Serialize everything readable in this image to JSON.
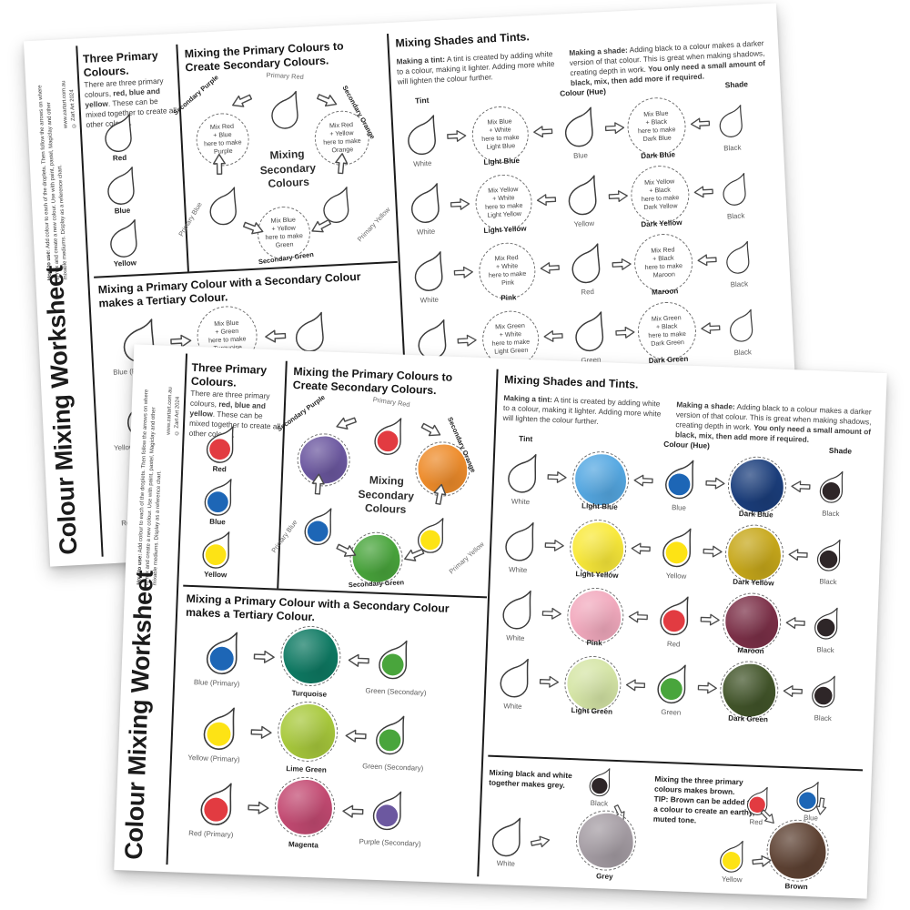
{
  "ws": {
    "title": "Colour Mixing Worksheet",
    "sidebar": {
      "how_to_label": "How to use:",
      "how_to_text": " Add colour to each of the droplets. Then follow the arrows on where to mix and create a new colour. Use with paint, pastel, Magiclay and other mixable mediums. Display as a reference chart.",
      "website": "www.zartart.com.au",
      "copyright": "© Zart Art 2024"
    },
    "palette": {
      "red": "#e23b41",
      "blue": "#1d66b6",
      "yellow": "#fde315",
      "purple": "#6c58a0",
      "orange": "#ee8c2b",
      "green": "#49a53c",
      "light_blue": "#55a8e2",
      "dark_blue": "#1b3e7c",
      "light_yellow": "#f9e93a",
      "dark_yellow": "#c7a81b",
      "pink": "#f2aabe",
      "maroon": "#7c3048",
      "light_green": "#d5e5a6",
      "dark_green": "#42552a",
      "turquoise": "#0e7a63",
      "lime_green": "#a8c93c",
      "magenta": "#c34a72",
      "grey": "#a59da4",
      "brown": "#5e4233",
      "black": "#2e2628",
      "white": "#ffffff"
    },
    "primary": {
      "heading": "Three Primary Colours.",
      "body_start": "There are three primary colours, ",
      "body_bold": "red, blue and yellow",
      "body_end": ". These can be mixed together to create all other colours.",
      "droplets": [
        {
          "label": "Red",
          "key": "red"
        },
        {
          "label": "Blue",
          "key": "blue"
        },
        {
          "label": "Yellow",
          "key": "yellow"
        }
      ]
    },
    "secondary": {
      "heading": "Mixing the Primary Colours to Create Secondary Colours.",
      "center": "Mixing\nSecondary\nColours",
      "primary_red": "Primary Red",
      "primary_blue": "Primary Blue",
      "primary_yellow": "Primary Yellow",
      "purple": {
        "label": "Secondary Purple",
        "key": "purple",
        "mix": "Mix Red\n+ Blue\nhere to make\nPurple"
      },
      "orange": {
        "label": "Secondary Orange",
        "key": "orange",
        "mix": "Mix Red\n+ Yellow\nhere to make\nOrange"
      },
      "green": {
        "label": "Secondary Green",
        "key": "green",
        "mix": "Mix Blue\n+ Yellow\nhere to make\nGreen"
      }
    },
    "shades": {
      "heading": "Mixing Shades and Tints.",
      "tint_label": "Making a tint:",
      "tint_text": " A tint is created by adding white to a colour, making it lighter. Adding more white will lighten the colour further.",
      "shade_label": "Making a shade:",
      "shade_text": " Adding black to a colour makes a darker version of that colour. This is great when making shadows, creating depth in work. ",
      "shade_bold": "You only need a small amount of black, mix, then add more if required.",
      "col_tint": "Tint",
      "col_hue": "Colour (Hue)",
      "col_shade": "Shade",
      "white_label": "White",
      "black_label": "Black",
      "rows": [
        {
          "hue_label": "Blue",
          "hue_key": "blue",
          "tint_label": "Light Blue",
          "tint_key": "light_blue",
          "tint_mix": "Mix Blue\n+ White\nhere to make\nLight Blue",
          "shade_label": "Dark Blue",
          "shade_key": "dark_blue",
          "shade_mix": "Mix Blue\n+ Black\nhere to make\nDark Blue"
        },
        {
          "hue_label": "Yellow",
          "hue_key": "yellow",
          "tint_label": "Light Yellow",
          "tint_key": "light_yellow",
          "tint_mix": "Mix Yellow\n+ White\nhere to make\nLight Yellow",
          "shade_label": "Dark Yellow",
          "shade_key": "dark_yellow",
          "shade_mix": "Mix Yellow\n+ Black\nhere to make\nDark Yellow"
        },
        {
          "hue_label": "Red",
          "hue_key": "red",
          "tint_label": "Pink",
          "tint_key": "pink",
          "tint_mix": "Mix Red\n+ White\nhere to make\nPink",
          "shade_label": "Maroon",
          "shade_key": "maroon",
          "shade_mix": "Mix Red\n+ Black\nhere to make\nMaroon"
        },
        {
          "hue_label": "Green",
          "hue_key": "green",
          "tint_label": "Light Green",
          "tint_key": "light_green",
          "tint_mix": "Mix Green\n+ White\nhere to make\nLight Green",
          "shade_label": "Dark Green",
          "shade_key": "dark_green",
          "shade_mix": "Mix Green\n+ Black\nhere to make\nDark Green"
        }
      ]
    },
    "tertiary": {
      "heading": "Mixing a Primary Colour with a Secondary Colour makes a Tertiary Colour.",
      "rows": [
        {
          "left_label": "Blue (Primary)",
          "left_key": "blue",
          "mix_label": "Turquoise",
          "mix_key": "turquoise",
          "mix_text": "Mix Blue\n+ Green\nhere to make\nTurquoise",
          "right_label": "Green (Secondary)",
          "right_key": "green"
        },
        {
          "left_label": "Yellow (Primary)",
          "left_key": "yellow",
          "mix_label": "Lime Green",
          "mix_key": "lime_green",
          "mix_text": "",
          "right_label": "Green (Secondary)",
          "right_key": "green"
        },
        {
          "left_label": "Red (Primary)",
          "left_key": "red",
          "mix_label": "Magenta",
          "mix_key": "magenta",
          "mix_text": "",
          "right_label": "Purple (Secondary)",
          "right_key": "purple"
        }
      ]
    },
    "grey": {
      "text": "Mixing black and white together makes grey.",
      "black_label": "Black",
      "white_label": "White",
      "result_label": "Grey",
      "key": "grey"
    },
    "brown": {
      "text": "Mixing the three primary colours makes brown.",
      "tip": "TIP: Brown can be added to a colour to create an earthy, muted tone.",
      "red_label": "Red",
      "blue_label": "Blue",
      "yellow_label": "Yellow",
      "result_label": "Brown",
      "key": "brown"
    }
  },
  "pages": [
    {
      "id": "back",
      "filled": false
    },
    {
      "id": "front",
      "filled": true
    }
  ]
}
